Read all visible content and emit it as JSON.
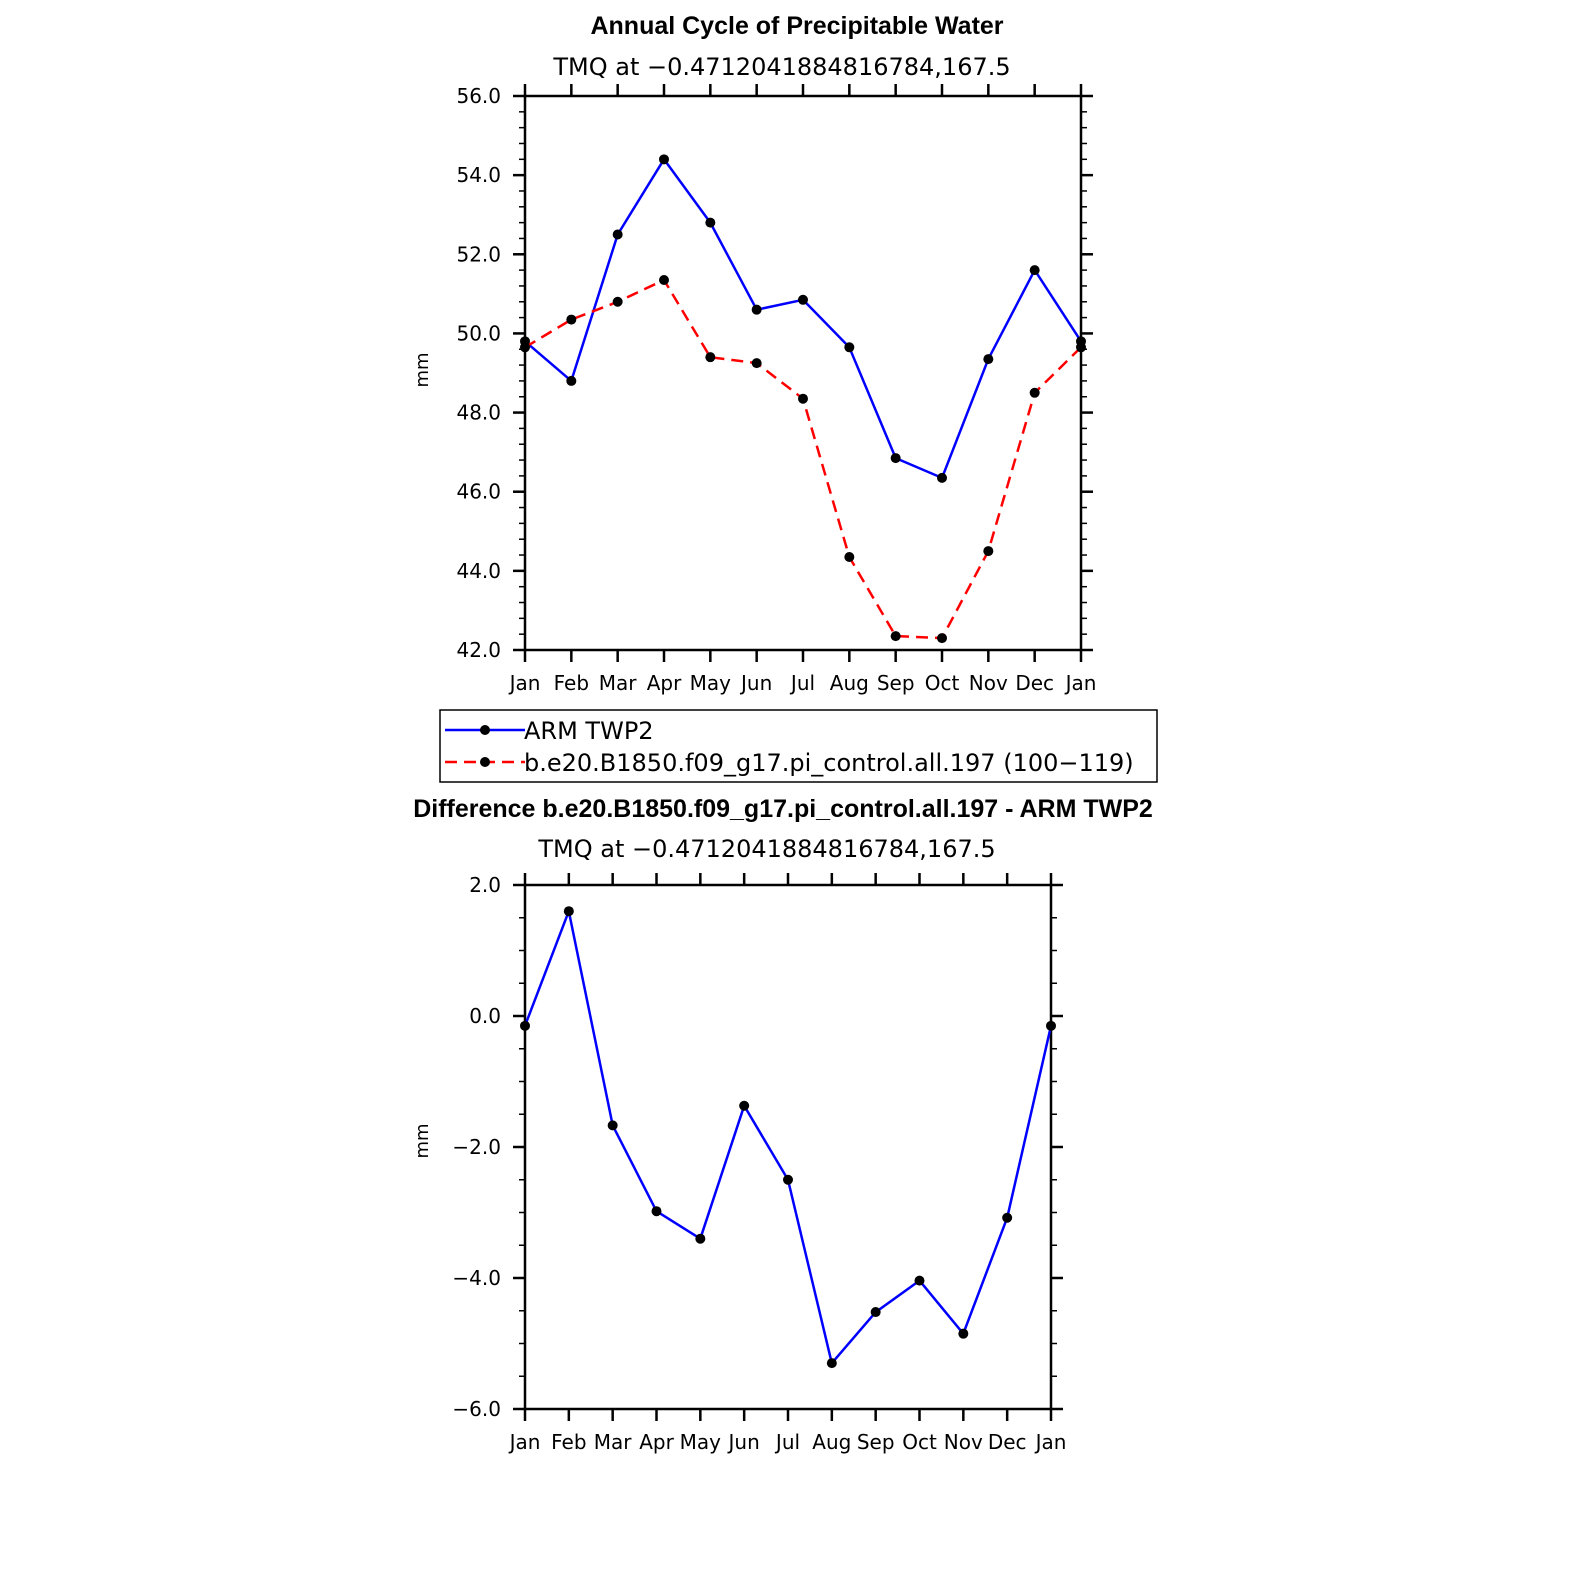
{
  "chart_data": [
    {
      "type": "line",
      "title": "Annual Cycle of Precipitable Water",
      "subtitle": "TMQ at −0.4712041884816784,167.5",
      "ylabel": "mm",
      "ylim": [
        42.0,
        56.0
      ],
      "yticks": [
        "42.0",
        "44.0",
        "46.0",
        "48.0",
        "50.0",
        "52.0",
        "54.0",
        "56.0"
      ],
      "categories": [
        "Jan",
        "Feb",
        "Mar",
        "Apr",
        "May",
        "Jun",
        "Jul",
        "Aug",
        "Sep",
        "Oct",
        "Nov",
        "Dec",
        "Jan"
      ],
      "legend_position": "below",
      "series": [
        {
          "name": "ARM TWP2",
          "color": "#0000ff",
          "dash": "solid",
          "values": [
            49.8,
            48.8,
            52.5,
            54.4,
            52.8,
            50.6,
            50.85,
            49.65,
            46.85,
            46.35,
            49.35,
            51.6,
            49.8
          ]
        },
        {
          "name": "b.e20.B1850.f09_g17.pi_control.all.197 (100−119)",
          "color": "#ff0000",
          "dash": "dashed",
          "values": [
            49.65,
            50.35,
            50.8,
            51.35,
            49.4,
            49.25,
            48.35,
            44.35,
            42.35,
            42.3,
            44.5,
            48.5,
            49.65
          ]
        }
      ]
    },
    {
      "type": "line",
      "title": "Difference b.e20.B1850.f09_g17.pi_control.all.197 - ARM TWP2",
      "subtitle": "TMQ at −0.4712041884816784,167.5",
      "ylabel": "mm",
      "ylim": [
        -6.0,
        2.0
      ],
      "yticks": [
        "−6.0",
        "−4.0",
        "−2.0",
        "0.0",
        "2.0"
      ],
      "categories": [
        "Jan",
        "Feb",
        "Mar",
        "Apr",
        "May",
        "Jun",
        "Jul",
        "Aug",
        "Sep",
        "Oct",
        "Nov",
        "Dec",
        "Jan"
      ],
      "series": [
        {
          "color": "#0000ff",
          "dash": "solid",
          "values": [
            -0.15,
            1.6,
            -1.67,
            -2.98,
            -3.4,
            -1.37,
            -2.5,
            -5.3,
            -4.52,
            -4.04,
            -4.85,
            -3.08,
            -0.15
          ]
        }
      ]
    }
  ]
}
